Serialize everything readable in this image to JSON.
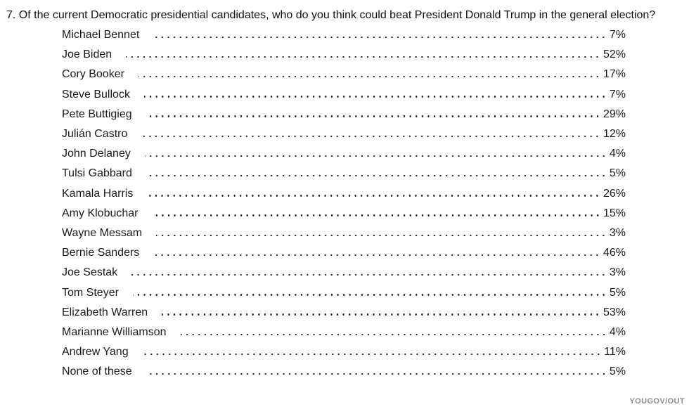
{
  "page": {
    "background_color": "#ffffff",
    "text_color": "#1a1a1a",
    "source_color": "#8d8d8d"
  },
  "question": {
    "text": "7. Of the current Democratic presidential candidates, who do you think could beat President Donald Trump in the general election?"
  },
  "poll": {
    "rows": [
      {
        "candidate": "Michael Bennet",
        "percent": "7%"
      },
      {
        "candidate": "Joe Biden",
        "percent": "52%"
      },
      {
        "candidate": "Cory Booker",
        "percent": "17%"
      },
      {
        "candidate": "Steve Bullock",
        "percent": "7%"
      },
      {
        "candidate": "Pete Buttigieg",
        "percent": "29%"
      },
      {
        "candidate": "Julián Castro",
        "percent": "12%"
      },
      {
        "candidate": "John Delaney",
        "percent": "4%"
      },
      {
        "candidate": "Tulsi Gabbard",
        "percent": "5%"
      },
      {
        "candidate": "Kamala Harris",
        "percent": "26%"
      },
      {
        "candidate": "Amy Klobuchar",
        "percent": "15%"
      },
      {
        "candidate": "Wayne Messam",
        "percent": "3%"
      },
      {
        "candidate": "Bernie Sanders",
        "percent": "46%"
      },
      {
        "candidate": "Joe Sestak",
        "percent": "3%"
      },
      {
        "candidate": "Tom Steyer",
        "percent": "5%"
      },
      {
        "candidate": "Elizabeth Warren",
        "percent": "53%"
      },
      {
        "candidate": "Marianne Williamson",
        "percent": "4%"
      },
      {
        "candidate": "Andrew Yang",
        "percent": "11%"
      },
      {
        "candidate": "None of these",
        "percent": "5%"
      }
    ]
  },
  "footer": {
    "source": "YOUGOV/OUT"
  }
}
